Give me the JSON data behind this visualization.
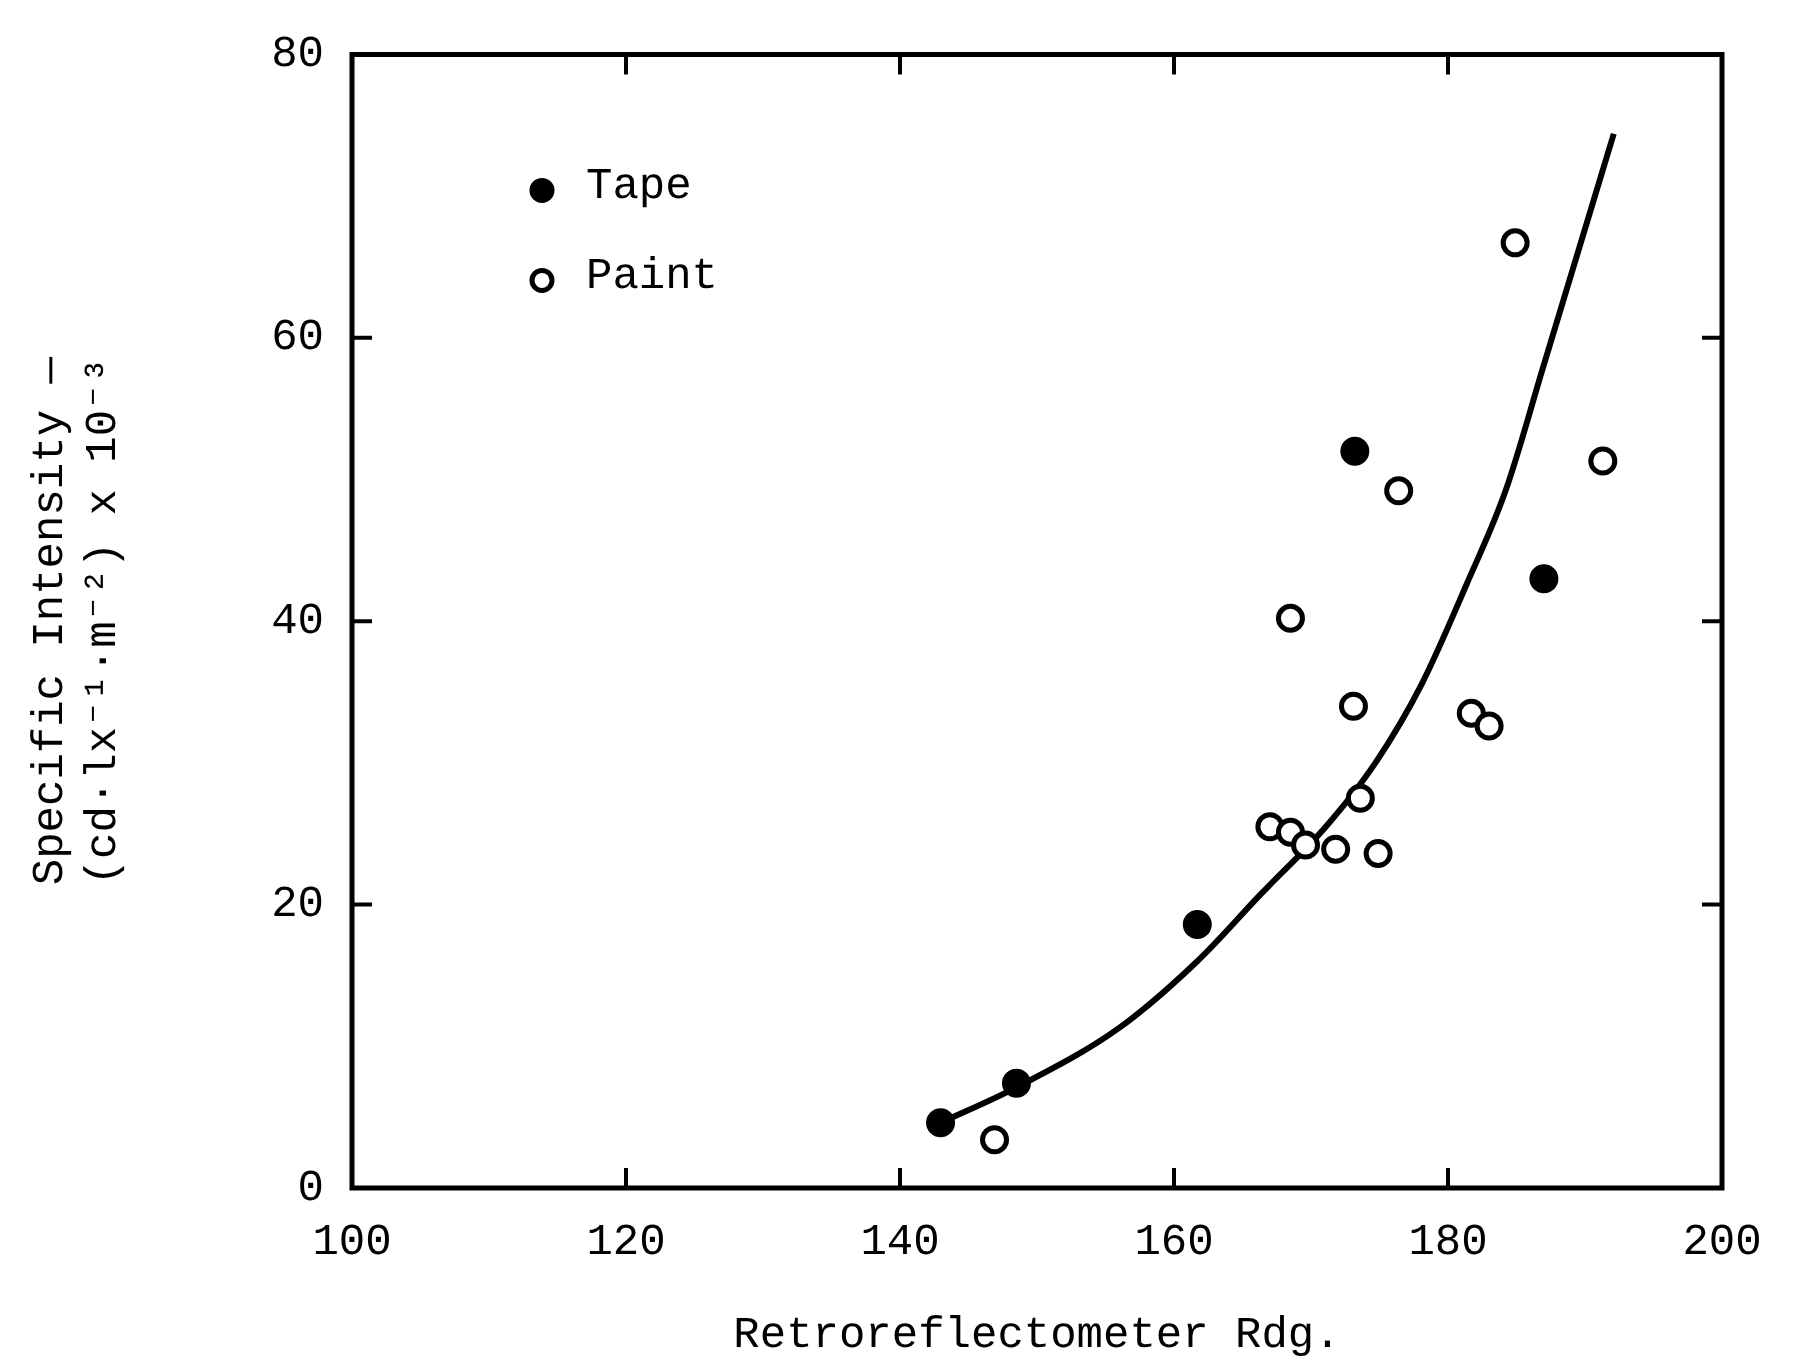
{
  "chart_data": {
    "type": "scatter",
    "xlabel": "Retroreflectometer Rdg.",
    "ylabel": "Specific Intensity —\n(cd·lx⁻¹·m⁻²) x 10⁻³",
    "xlim": [
      100,
      200
    ],
    "xticks": [
      100,
      120,
      140,
      160,
      180,
      200
    ],
    "ylim": [
      0,
      80
    ],
    "yticks": [
      0,
      20,
      40,
      60,
      80
    ],
    "grid": false,
    "legend": "top left",
    "marker": "circle",
    "series": [
      {
        "name": "Tape",
        "color": "#000000",
        "x": [
          142.96,
          148.5,
          161.7,
          173.2,
          187.0
        ],
        "values": [
          4.6,
          7.4,
          18.6,
          52.0,
          43.0
        ]
      },
      {
        "name": "Paint",
        "color": "#000000",
        "x": [
          146.9,
          168.5,
          176.4,
          191.3,
          173.1,
          181.7,
          183.0,
          173.6,
          167.0,
          168.5,
          169.6,
          171.8,
          174.9,
          184.9
        ],
        "values": [
          3.4,
          40.2,
          49.2,
          51.3,
          34.0,
          33.5,
          32.6,
          27.5,
          25.5,
          25.1,
          24.2,
          23.9,
          23.6,
          66.7
        ]
      },
      {
        "type": "line",
        "color": "#000000",
        "marker": "none",
        "line_style": "solid",
        "x": [
          142.96,
          148.5,
          156.0,
          161.7,
          166.3,
          171.0,
          174.7,
          178.1,
          181.4,
          184.2,
          187.0,
          192.1
        ],
        "values": [
          4.6,
          7.1,
          11.3,
          16.0,
          20.7,
          25.4,
          30.0,
          35.6,
          42.7,
          49.2,
          58.1,
          74.4
        ]
      }
    ]
  }
}
